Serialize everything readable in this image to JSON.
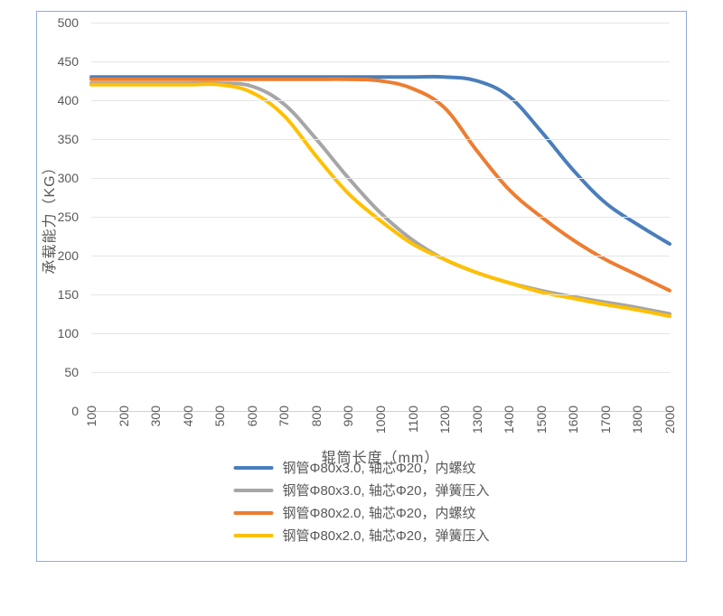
{
  "chart": {
    "type": "line",
    "background_color": "#ffffff",
    "border_color": "#8faadc",
    "grid_color": "#e6e6e6",
    "tick_color": "#595959",
    "y_axis_title": "承载能力（KG）",
    "x_axis_title": "辊筒长度（mm）",
    "title_fontsize": 16,
    "tick_fontsize": 14,
    "ylim": [
      0,
      500
    ],
    "ytick_step": 50,
    "y_ticks": [
      0,
      50,
      100,
      150,
      200,
      250,
      300,
      350,
      400,
      450,
      500
    ],
    "x_categories": [
      "100",
      "200",
      "300",
      "400",
      "500",
      "600",
      "700",
      "800",
      "900",
      "1000",
      "1100",
      "1200",
      "1300",
      "1400",
      "1500",
      "1600",
      "1700",
      "1800",
      "2000"
    ],
    "line_width": 4,
    "series": [
      {
        "name": "钢管Φ80x3.0, 轴芯Φ20，内螺纹",
        "color": "#4a7ebb",
        "data": [
          430,
          430,
          430,
          430,
          430,
          430,
          430,
          430,
          430,
          430,
          430,
          430,
          425,
          405,
          360,
          310,
          268,
          240,
          215
        ]
      },
      {
        "name": "钢管Φ80x3.0, 轴芯Φ20，弹簧压入",
        "color": "#a6a6a6",
        "data": [
          422,
          422,
          422,
          422,
          422,
          418,
          395,
          350,
          300,
          255,
          220,
          195,
          178,
          165,
          155,
          147,
          140,
          133,
          125
        ]
      },
      {
        "name": "钢管Φ80x2.0, 轴芯Φ20，内螺纹",
        "color": "#ed7d31",
        "data": [
          427,
          427,
          427,
          427,
          427,
          427,
          427,
          427,
          427,
          425,
          415,
          390,
          335,
          285,
          250,
          220,
          195,
          175,
          155
        ]
      },
      {
        "name": "钢管Φ80x2.0, 轴芯Φ20，弹簧压入",
        "color": "#ffc000",
        "data": [
          420,
          420,
          420,
          420,
          420,
          410,
          380,
          328,
          280,
          245,
          215,
          195,
          178,
          165,
          153,
          145,
          137,
          130,
          122
        ]
      }
    ],
    "legend_order": [
      0,
      1,
      2,
      3
    ]
  }
}
